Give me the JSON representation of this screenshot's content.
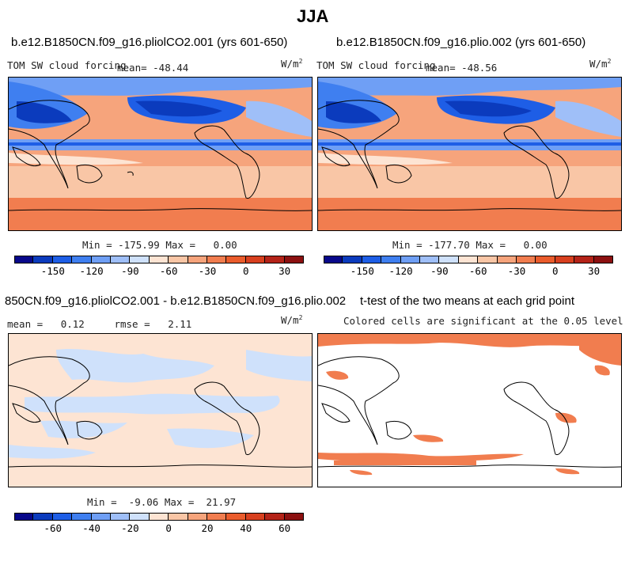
{
  "title": "JJA",
  "panels": {
    "top_left": {
      "run_title": "b.e12.B1850CN.f09_g16.pliolCO2.001 (yrs 601-650)",
      "variable": "TOM SW cloud forcing",
      "mean_label": "mean= -48.44",
      "units": "W/m",
      "units_exp": "2",
      "minmax": "Min = -175.99 Max =   0.00"
    },
    "top_right": {
      "run_title": "b.e12.B1850CN.f09_g16.plio.002 (yrs 601-650)",
      "variable": "TOM SW cloud forcing",
      "mean_label": "mean= -48.56",
      "units": "W/m",
      "units_exp": "2",
      "minmax": "Min = -177.70 Max =   0.00"
    },
    "bottom_left": {
      "run_title": "850CN.f09_g16.pliolCO2.001 - b.e12.B1850CN.f09_g16.plio.002",
      "stats": "mean =   0.12     rmse =   2.11",
      "units": "W/m",
      "units_exp": "2",
      "minmax": "Min =  -9.06 Max =  21.97"
    },
    "bottom_right": {
      "run_title": "t-test of the two means at each grid point",
      "note": "Colored cells are significant at the 0.05 level"
    }
  },
  "colorbars": {
    "forcing": {
      "colors": [
        "#08088a",
        "#0b3bbd",
        "#1e5ee6",
        "#3f7ff0",
        "#6f9ff5",
        "#9fbff8",
        "#cfe1fb",
        "#fde4d3",
        "#f9c6a6",
        "#f6a47c",
        "#f17d4f",
        "#ea5c2c",
        "#d8401f",
        "#b42318",
        "#8c1010"
      ],
      "tick_labels": [
        "-150",
        "-120",
        "-90",
        "-60",
        "-30",
        "0",
        "30"
      ]
    },
    "difference": {
      "colors": [
        "#08088a",
        "#0b3bbd",
        "#1e5ee6",
        "#3f7ff0",
        "#6f9ff5",
        "#9fbff8",
        "#cfe1fb",
        "#fde4d3",
        "#f9c6a6",
        "#f6a47c",
        "#f17d4f",
        "#ea5c2c",
        "#d8401f",
        "#b42318",
        "#8c1010"
      ],
      "tick_labels": [
        "-60",
        "-40",
        "-20",
        "0",
        "20",
        "40",
        "60"
      ]
    }
  }
}
